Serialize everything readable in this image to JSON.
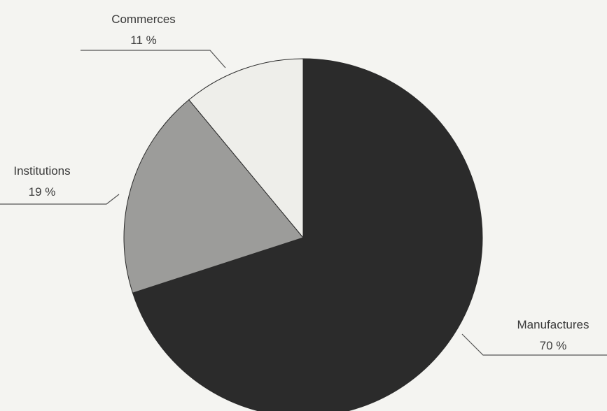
{
  "chart_data": {
    "type": "pie",
    "slices": [
      {
        "label": "Manufactures",
        "value": 70,
        "value_label": "70 %",
        "color": "#2b2b2b"
      },
      {
        "label": "Institutions",
        "value": 19,
        "value_label": "19 %",
        "color": "#9c9c9a"
      },
      {
        "label": "Commerces",
        "value": 11,
        "value_label": "11 %",
        "color": "#eeeeea"
      }
    ],
    "start": "12 o'clock",
    "direction": "clockwise",
    "labels_outside": true
  }
}
